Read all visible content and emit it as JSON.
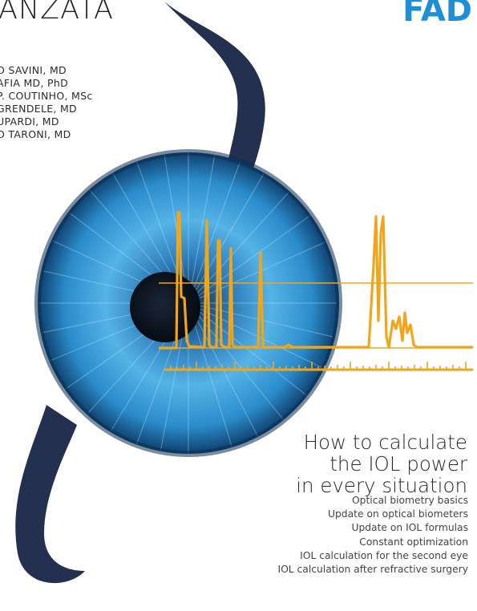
{
  "header": {
    "left_text": "ANZATA",
    "right_text": "FAD"
  },
  "authors": [
    "O SAVINI, MD",
    "AFIA MD, PhD",
    "P. COUTINHO, MSc",
    "GRENDELE, MD",
    "UPARDI, MD",
    "O TARONI, MD"
  ],
  "title_lines": [
    "How to calculate",
    "the IOL power",
    "in every situation"
  ],
  "topics": [
    "Optical biometry basics",
    "Update on optical biometers",
    "Update on IOL formulas",
    "Constant optimization",
    "IOL calculation for the second eye",
    "IOL calculation after refractive surgery"
  ],
  "colors": {
    "haptic": "#233050",
    "iris": "#2a8fcf",
    "pupil": "#0b1524",
    "trace": "#f2a519",
    "accent": "#1e8fd4"
  }
}
